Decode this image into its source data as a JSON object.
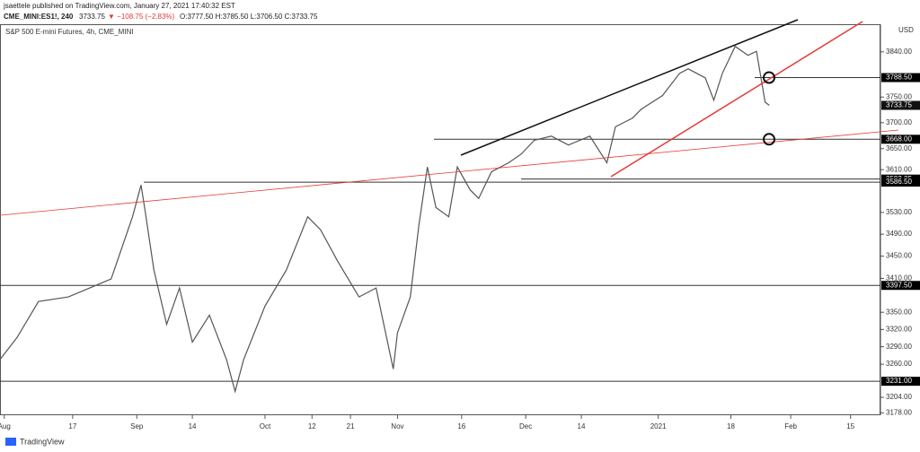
{
  "header": {
    "publisher": "jsaettele published on TradingView.com, January 27, 2021 17:40:32 EST",
    "symbol": "CME_MINI:ES1!, 240",
    "last": "3733.75",
    "change": "▼ −108.75 (−2.83%)",
    "ohlc": "O:3777.50 H:3785.50 L:3706.50 C:3733.75"
  },
  "footer": {
    "brand": "TradingView"
  },
  "chart_data": {
    "type": "line",
    "title": "S&P 500 E-mini Futures, 4h, CME_MINI",
    "currency": "USD",
    "log_scale": true,
    "color": "#555555",
    "x": [
      "2020-07-31",
      "2020-08-04",
      "2020-08-09",
      "2020-08-16",
      "2020-08-21",
      "2020-08-26",
      "2020-08-31",
      "2020-09-02",
      "2020-09-03",
      "2020-09-05",
      "2020-09-08",
      "2020-09-11",
      "2020-09-14",
      "2020-09-18",
      "2020-09-22",
      "2020-09-24",
      "2020-09-26",
      "2020-10-01",
      "2020-10-06",
      "2020-10-11",
      "2020-10-14",
      "2020-10-18",
      "2020-10-23",
      "2020-10-27",
      "2020-10-31",
      "2020-11-01",
      "2020-11-04",
      "2020-11-06",
      "2020-11-08",
      "2020-11-10",
      "2020-11-13",
      "2020-11-15",
      "2020-11-18",
      "2020-11-20",
      "2020-11-23",
      "2020-11-27",
      "2020-11-30",
      "2020-12-03",
      "2020-12-07",
      "2020-12-11",
      "2020-12-16",
      "2020-12-20",
      "2020-12-22",
      "2020-12-26",
      "2020-12-28",
      "2021-01-02",
      "2021-01-06",
      "2021-01-08",
      "2021-01-12",
      "2021-01-14",
      "2021-01-16",
      "2021-01-19",
      "2021-01-22",
      "2021-01-24",
      "2021-01-26",
      "2021-01-27"
    ],
    "values": [
      3268,
      3306,
      3369,
      3377,
      3393,
      3409,
      3522,
      3581,
      3531,
      3425,
      3329,
      3393,
      3298,
      3345,
      3268,
      3214,
      3268,
      3361,
      3425,
      3522,
      3498,
      3441,
      3377,
      3393,
      3252,
      3314,
      3377,
      3506,
      3615,
      3539,
      3522,
      3615,
      3572,
      3556,
      3606,
      3623,
      3640,
      3666,
      3674,
      3657,
      3674,
      3623,
      3692,
      3709,
      3726,
      3753,
      3797,
      3806,
      3788,
      3744,
      3797,
      3851,
      3833,
      3841,
      3740,
      3733.75
    ],
    "xlim": [
      "2020-07-31",
      "2021-02-22"
    ],
    "xticks": [
      {
        "value": "2020-08-01",
        "label": "Aug"
      },
      {
        "value": "2020-08-17",
        "label": "17"
      },
      {
        "value": "2020-09-01",
        "label": "Sep"
      },
      {
        "value": "2020-09-14",
        "label": "14"
      },
      {
        "value": "2020-10-01",
        "label": "Oct"
      },
      {
        "value": "2020-10-12",
        "label": "12"
      },
      {
        "value": "2020-10-21",
        "label": "21"
      },
      {
        "value": "2020-11-01",
        "label": "Nov"
      },
      {
        "value": "2020-11-16",
        "label": "16"
      },
      {
        "value": "2020-12-01",
        "label": "Dec"
      },
      {
        "value": "2020-12-14",
        "label": "14"
      },
      {
        "value": "2021-01-01",
        "label": "2021"
      },
      {
        "value": "2021-01-18",
        "label": "18"
      },
      {
        "value": "2021-02-01",
        "label": "Feb"
      },
      {
        "value": "2021-02-15",
        "label": "15"
      }
    ],
    "ylim": [
      3174,
      3896
    ],
    "yticks": [
      {
        "value": 3840,
        "label": "3840.00"
      },
      {
        "value": 3750,
        "label": "3750.00"
      },
      {
        "value": 3700,
        "label": "3700.00"
      },
      {
        "value": 3650,
        "label": "3650.00"
      },
      {
        "value": 3610,
        "label": "3610.00"
      },
      {
        "value": 3530,
        "label": "3530.00"
      },
      {
        "value": 3490,
        "label": "3490.00"
      },
      {
        "value": 3450,
        "label": "3450.00"
      },
      {
        "value": 3410,
        "label": "3410.00"
      },
      {
        "value": 3350,
        "label": "3350.00"
      },
      {
        "value": 3320,
        "label": "3320.00"
      },
      {
        "value": 3290,
        "label": "3290.00"
      },
      {
        "value": 3260,
        "label": "3260.00"
      },
      {
        "value": 3204,
        "label": "3204.00"
      },
      {
        "value": 3178,
        "label": "3178.00"
      }
    ],
    "levels": [
      {
        "value": 3788.5,
        "label": "3788.50"
      },
      {
        "value": 3733.75,
        "label": "3733.75"
      },
      {
        "value": 3668,
        "label": "3668.00"
      },
      {
        "value": 3592.25,
        "label": "3592.25"
      },
      {
        "value": 3586.5,
        "label": "3586.50"
      },
      {
        "value": 3397.5,
        "label": "3397.50"
      },
      {
        "value": 3231,
        "label": "3231.00"
      }
    ]
  }
}
